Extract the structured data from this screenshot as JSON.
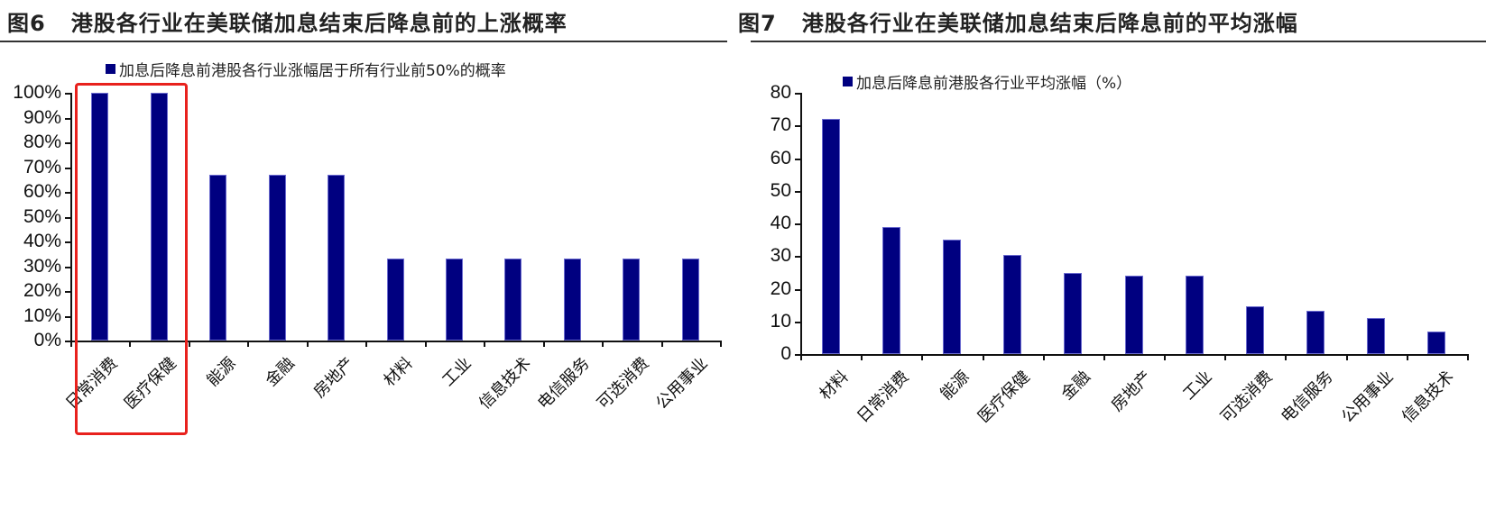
{
  "figures": [
    {
      "label": "图6",
      "title": "港股各行业在美联储加息结束后降息前的上涨概率"
    },
    {
      "label": "图7",
      "title": "港股各行业在美联储加息结束后降息前的平均涨幅"
    }
  ],
  "chart_data": [
    {
      "type": "bar",
      "title": "港股各行业在美联储加息结束后降息前的上涨概率",
      "legend": [
        "加息后降息前港股各行业涨幅居于所有行业前50%的概率"
      ],
      "legend_position": "top",
      "categories": [
        "日常消费",
        "医疗保健",
        "能源",
        "金融",
        "房地产",
        "材料",
        "工业",
        "信息技术",
        "电信服务",
        "可选消费",
        "公用事业"
      ],
      "series": [
        {
          "name": "加息后降息前港股各行业涨幅居于所有行业前50%的概率",
          "values": [
            100,
            100,
            67,
            67,
            67,
            33,
            33,
            33,
            33,
            33,
            33
          ]
        }
      ],
      "yticks": [
        "0%",
        "10%",
        "20%",
        "30%",
        "40%",
        "50%",
        "60%",
        "70%",
        "80%",
        "90%",
        "100%"
      ],
      "ylim": [
        0,
        100
      ],
      "xlabel": "",
      "ylabel": "",
      "grid": false,
      "color": "#000080",
      "annotation": "red box highlighting 日常消费 and 医疗保健"
    },
    {
      "type": "bar",
      "title": "港股各行业在美联储加息结束后降息前的平均涨幅",
      "legend": [
        "加息后降息前港股各行业平均涨幅（%）"
      ],
      "legend_position": "top",
      "categories": [
        "材料",
        "日常消费",
        "能源",
        "医疗保健",
        "金融",
        "房地产",
        "工业",
        "可选消费",
        "电信服务",
        "公用事业",
        "信息技术"
      ],
      "series": [
        {
          "name": "加息后降息前港股各行业平均涨幅（%）",
          "values": [
            72,
            39,
            35,
            30.3,
            24.7,
            24.1,
            24.1,
            14.6,
            13.2,
            11.0,
            6.8
          ]
        }
      ],
      "yticks": [
        "0",
        "10",
        "20",
        "30",
        "40",
        "50",
        "60",
        "70",
        "80"
      ],
      "ylim": [
        0,
        80
      ],
      "xlabel": "",
      "ylabel": "",
      "grid": false,
      "color": "#000080"
    }
  ]
}
